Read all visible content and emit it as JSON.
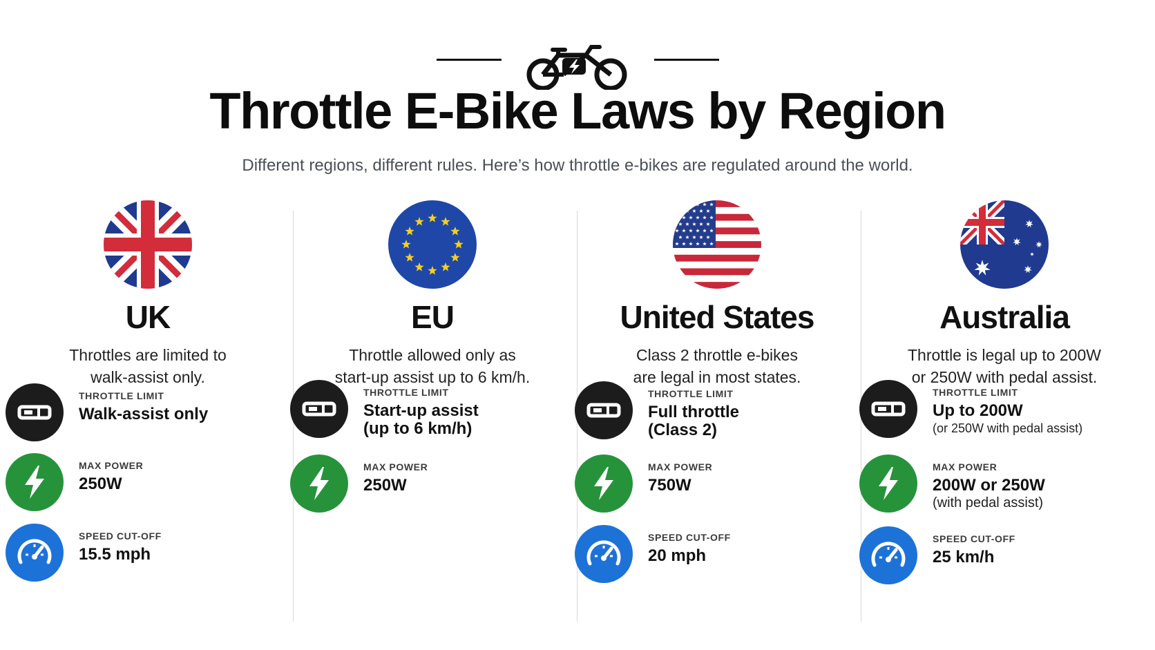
{
  "header": {
    "title": "Throttle E-Bike Laws by Region",
    "subtitle": "Different regions, different rules. Here’s how throttle e-bikes are regulated around the world.",
    "icon": "electric-bicycle-icon"
  },
  "labels": {
    "throttle": "THROTTLE LIMIT",
    "power": "MAX POWER",
    "speed": "SPEED CUT-OFF"
  },
  "colors": {
    "throttle_badge": "#1c1c1c",
    "power_badge": "#26933b",
    "speed_badge": "#1d72d8"
  },
  "regions": [
    {
      "flag": "uk-flag-icon",
      "name": "UK",
      "desc1": "Throttles are limited to",
      "desc2": "walk-assist only.",
      "throttle_line1": "Walk-assist only",
      "throttle_line2": "",
      "power_line1": "250W",
      "power_line2": "",
      "speed": "15.5 mph"
    },
    {
      "flag": "eu-flag-icon",
      "name": "EU",
      "desc1": "Throttle allowed only as",
      "desc2": "start-up assist up to 6 km/h.",
      "throttle_line1": "Start-up assist",
      "throttle_line2": "(up to 6 km/h)",
      "power_line1": "250W",
      "power_line2": "",
      "speed": ""
    },
    {
      "flag": "us-flag-icon",
      "name": "United States",
      "desc1": "Class 2 throttle e-bikes",
      "desc2": "are legal in most states.",
      "throttle_line1": "Full throttle",
      "throttle_line2": "(Class 2)",
      "power_line1": "750W",
      "power_line2": "",
      "speed": "20 mph"
    },
    {
      "flag": "australia-flag-icon",
      "name": "Australia",
      "desc1": "Throttle is legal up to 200W",
      "desc2": "or 250W with pedal assist.",
      "throttle_line1": "Up to 200W",
      "throttle_line2": "(or 250W with pedal assist)",
      "power_line1": "200W or 250W",
      "power_line2": "(with pedal assist)",
      "speed": "25 km/h"
    }
  ]
}
